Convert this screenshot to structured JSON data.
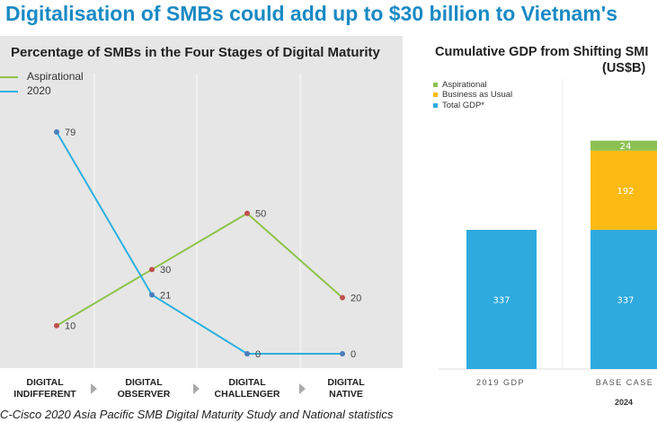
{
  "title": "Digitalisation of SMBs could add up to $30 billion to Vietnam's",
  "source": "C-Cisco 2020 Asia Pacific SMB Digital Maturity Study and National statistics",
  "chart_data": [
    {
      "type": "line",
      "title": "Percentage of SMBs in the Four Stages of Digital Maturity",
      "categories": [
        "DIGITAL INDIFFERENT",
        "DIGITAL OBSERVER",
        "DIGITAL CHALLENGER",
        "DIGITAL NATIVE"
      ],
      "category_lines": [
        [
          "DIGITAL",
          "INDIFFERENT"
        ],
        [
          "DIGITAL",
          "OBSERVER"
        ],
        [
          "DIGITAL",
          "CHALLENGER"
        ],
        [
          "DIGITAL",
          "NATIVE"
        ]
      ],
      "series": [
        {
          "name": "Aspirational",
          "values": [
            10,
            30,
            50,
            20
          ],
          "color": "#8dc34a",
          "marker": "#c0504d"
        },
        {
          "name": "2020",
          "values": [
            79,
            21,
            0,
            0
          ],
          "color": "#2bb0e0",
          "marker": "#4a7ebb"
        }
      ],
      "legend": "top-left",
      "grid": "vertical",
      "background": "#e6e6e6"
    },
    {
      "type": "stacked-bar",
      "title": "Cumulative GDP from Shifting SMI",
      "subtitle": "(US$B)",
      "categories": [
        "2019 GDP",
        "BASE CASE"
      ],
      "group_label": "2024",
      "series": [
        {
          "name": "Total GDP*",
          "values": [
            337,
            337
          ],
          "color": "#2eaadf"
        },
        {
          "name": "Business as Usual",
          "values": [
            null,
            192
          ],
          "color": "#fbbb14"
        },
        {
          "name": "Aspirational",
          "values": [
            null,
            24
          ],
          "color": "#8cc152"
        }
      ],
      "legend_order": [
        "Aspirational",
        "Business as Usual",
        "Total GDP*"
      ],
      "legend": "top-left"
    }
  ]
}
